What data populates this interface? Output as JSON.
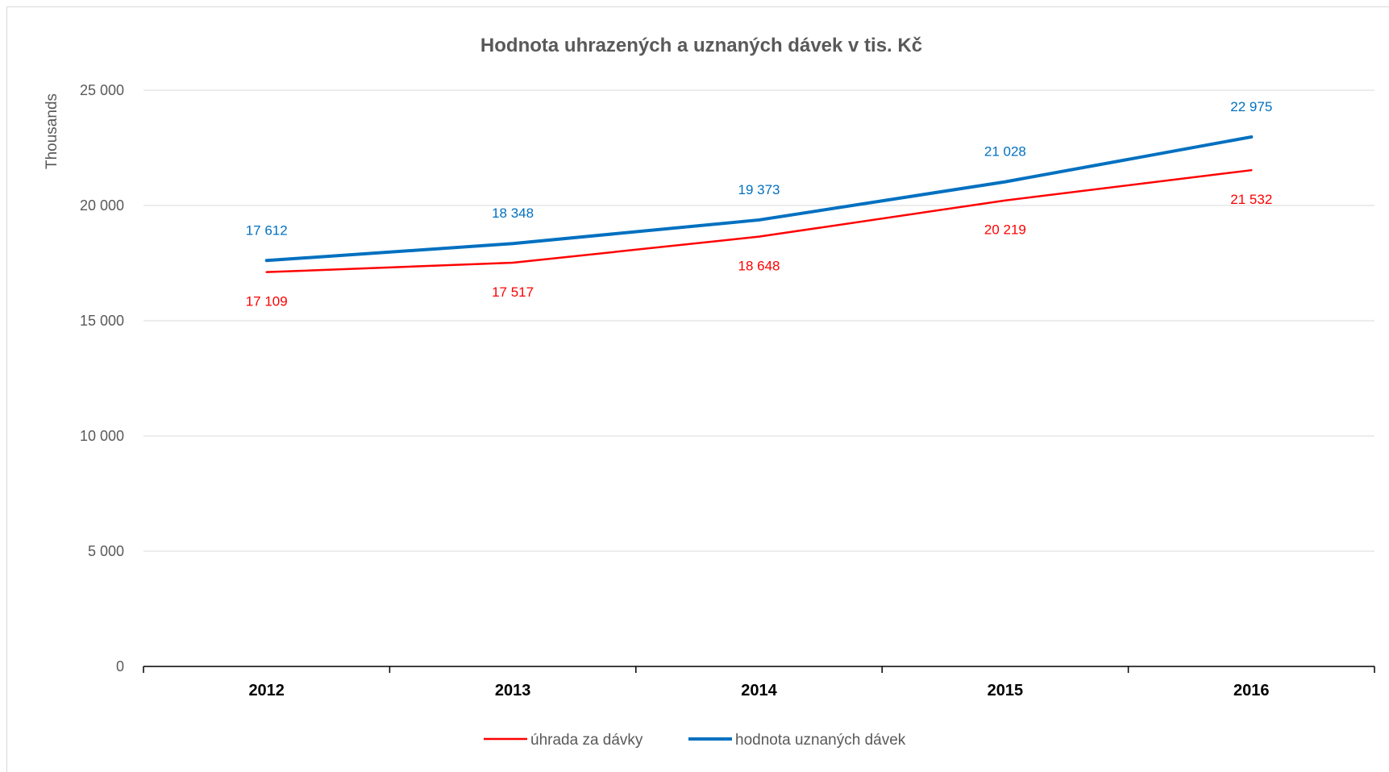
{
  "chart_data": {
    "type": "line",
    "title": "Hodnota uhrazených a uznaných dávek v tis. Kč",
    "ylabel": "Thousands",
    "xlabel": "",
    "categories": [
      "2012",
      "2013",
      "2014",
      "2015",
      "2016"
    ],
    "ylim": [
      0,
      25000
    ],
    "yticks": [
      0,
      5000,
      10000,
      15000,
      20000,
      25000
    ],
    "ytick_labels": [
      "0",
      "5 000",
      "10 000",
      "15 000",
      "20 000",
      "25 000"
    ],
    "grid": true,
    "legend_position": "bottom",
    "series": [
      {
        "name": "úhrada za dávky",
        "color": "#ff0000",
        "values": [
          17109,
          17517,
          18648,
          20219,
          21532
        ],
        "labels": [
          "17 109",
          "17 517",
          "18 648",
          "20 219",
          "21 532"
        ],
        "label_position": "below"
      },
      {
        "name": "hodnota uznaných dávek",
        "color": "#0070c0",
        "values": [
          17612,
          18348,
          19373,
          21028,
          22975
        ],
        "labels": [
          "17 612",
          "18 348",
          "19 373",
          "21 028",
          "22 975"
        ],
        "label_position": "above"
      }
    ]
  }
}
